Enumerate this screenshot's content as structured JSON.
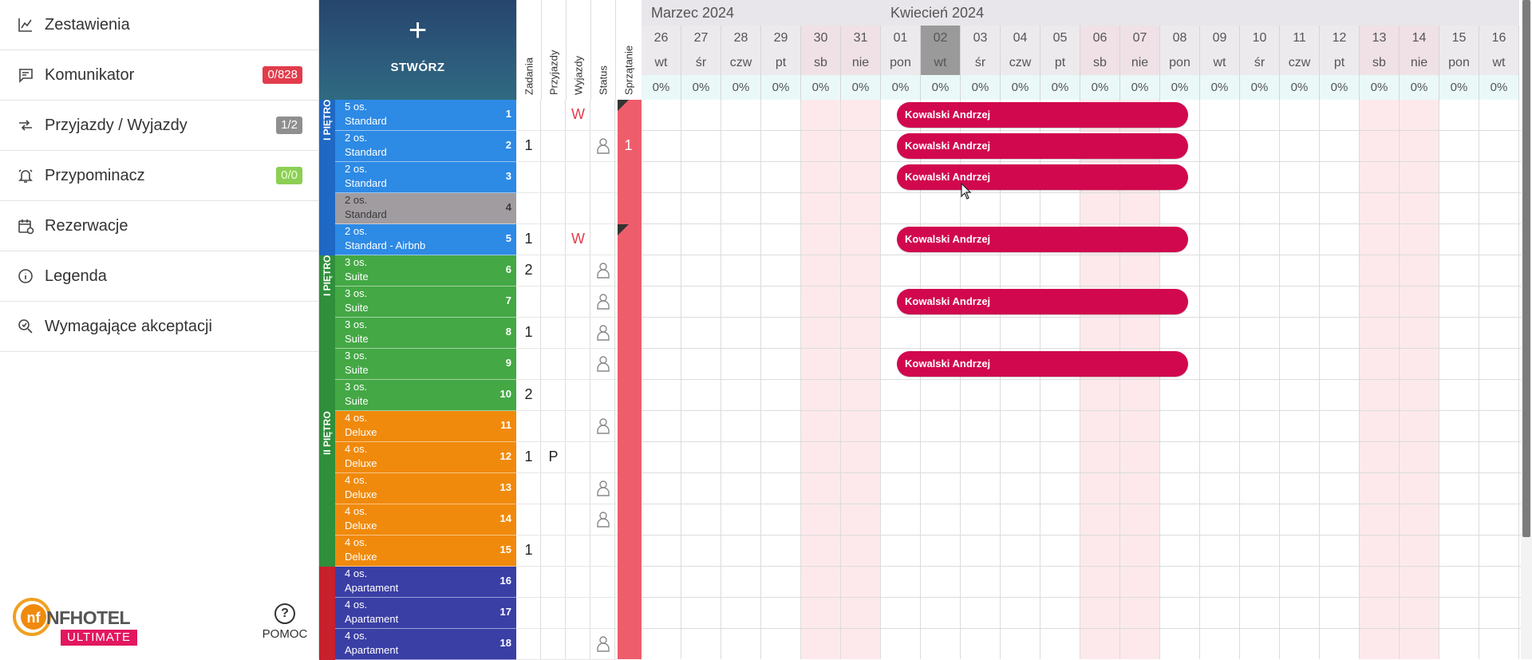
{
  "sidebar": {
    "items": [
      {
        "label": "Zestawienia",
        "icon": "chart-icon"
      },
      {
        "label": "Komunikator",
        "icon": "chat-icon",
        "badge": "0/828",
        "badge_color": "#e23c4b"
      },
      {
        "label": "Przyjazdy / Wyjazdy",
        "icon": "arrows-icon",
        "badge": "1/2",
        "badge_color": "#8f8f8f"
      },
      {
        "label": "Przypominacz",
        "icon": "bell-icon",
        "badge": "0/0",
        "badge_color": "#8dcf54"
      },
      {
        "label": "Rezerwacje",
        "icon": "calendar-icon"
      },
      {
        "label": "Legenda",
        "icon": "info-icon"
      },
      {
        "label": "Wymagające akceptacji",
        "icon": "search-icon"
      }
    ],
    "logo_text": "NFHOTEL",
    "logo_sub": "ULTIMATE",
    "logo_mark": "nf",
    "help_label": "POMOC",
    "help_icon": "?"
  },
  "create": {
    "plus": "+",
    "label": "STWÓRZ"
  },
  "column_headers": [
    "Zadania",
    "Przyjazdy",
    "Wyjazdy",
    "Status",
    "Sprzątanie"
  ],
  "floors": [
    {
      "label": "I PIĘTRO",
      "color": "#1f68c3"
    },
    {
      "label": "I PIĘTRO",
      "color": "#2f8f3a"
    },
    {
      "label": "II PIĘTRO",
      "color": "#2f8f3a"
    },
    {
      "label": "",
      "color": "#c8202d"
    }
  ],
  "rooms": [
    {
      "cap": "5 os.",
      "type": "Standard",
      "num": "1",
      "color": "#2d8ae5",
      "zadania": "",
      "przyjazdy": "",
      "wyjazdy": "W",
      "status": "",
      "sprzatanie": ""
    },
    {
      "cap": "2 os.",
      "type": "Standard",
      "num": "2",
      "color": "#2d8ae5",
      "zadania": "1",
      "przyjazdy": "",
      "wyjazdy": "",
      "status": "person",
      "sprzatanie": "1"
    },
    {
      "cap": "2 os.",
      "type": "Standard",
      "num": "3",
      "color": "#2d8ae5",
      "zadania": "",
      "przyjazdy": "",
      "wyjazdy": "",
      "status": "",
      "sprzatanie": ""
    },
    {
      "cap": "2 os.",
      "type": "Standard",
      "num": "4",
      "color": "#a09ca0",
      "zadania": "",
      "przyjazdy": "",
      "wyjazdy": "",
      "status": "",
      "sprzatanie": ""
    },
    {
      "cap": "2 os.",
      "type": "Standard - Airbnb",
      "num": "5",
      "color": "#2d8ae5",
      "zadania": "1",
      "przyjazdy": "",
      "wyjazdy": "W",
      "status": "",
      "sprzatanie": ""
    },
    {
      "cap": "3 os.",
      "type": "Suite",
      "num": "6",
      "color": "#44a845",
      "zadania": "2",
      "przyjazdy": "",
      "wyjazdy": "",
      "status": "person",
      "sprzatanie": ""
    },
    {
      "cap": "3 os.",
      "type": "Suite",
      "num": "7",
      "color": "#44a845",
      "zadania": "",
      "przyjazdy": "",
      "wyjazdy": "",
      "status": "person",
      "sprzatanie": ""
    },
    {
      "cap": "3 os.",
      "type": "Suite",
      "num": "8",
      "color": "#44a845",
      "zadania": "1",
      "przyjazdy": "",
      "wyjazdy": "",
      "status": "person",
      "sprzatanie": ""
    },
    {
      "cap": "3 os.",
      "type": "Suite",
      "num": "9",
      "color": "#44a845",
      "zadania": "",
      "przyjazdy": "",
      "wyjazdy": "",
      "status": "person",
      "sprzatanie": ""
    },
    {
      "cap": "3 os.",
      "type": "Suite",
      "num": "10",
      "color": "#44a845",
      "zadania": "2",
      "przyjazdy": "",
      "wyjazdy": "",
      "status": "",
      "sprzatanie": ""
    },
    {
      "cap": "4 os.",
      "type": "Deluxe",
      "num": "11",
      "color": "#f08a0c",
      "zadania": "",
      "przyjazdy": "",
      "wyjazdy": "",
      "status": "person",
      "sprzatanie": ""
    },
    {
      "cap": "4 os.",
      "type": "Deluxe",
      "num": "12",
      "color": "#f08a0c",
      "zadania": "1",
      "przyjazdy": "P",
      "wyjazdy": "",
      "status": "",
      "sprzatanie": ""
    },
    {
      "cap": "4 os.",
      "type": "Deluxe",
      "num": "13",
      "color": "#f08a0c",
      "zadania": "",
      "przyjazdy": "",
      "wyjazdy": "",
      "status": "person",
      "sprzatanie": ""
    },
    {
      "cap": "4 os.",
      "type": "Deluxe",
      "num": "14",
      "color": "#f08a0c",
      "zadania": "",
      "przyjazdy": "",
      "wyjazdy": "",
      "status": "person",
      "sprzatanie": ""
    },
    {
      "cap": "4 os.",
      "type": "Deluxe",
      "num": "15",
      "color": "#f08a0c",
      "zadania": "1",
      "przyjazdy": "",
      "wyjazdy": "",
      "status": "",
      "sprzatanie": ""
    },
    {
      "cap": "4 os.",
      "type": "Apartament",
      "num": "16",
      "color": "#3a3fa6",
      "zadania": "",
      "przyjazdy": "",
      "wyjazdy": "",
      "status": "",
      "sprzatanie": ""
    },
    {
      "cap": "4 os.",
      "type": "Apartament",
      "num": "17",
      "color": "#3a3fa6",
      "zadania": "",
      "przyjazdy": "",
      "wyjazdy": "",
      "status": "",
      "sprzatanie": ""
    },
    {
      "cap": "4 os.",
      "type": "Apartament",
      "num": "18",
      "color": "#3a3fa6",
      "zadania": "",
      "przyjazdy": "",
      "wyjazdy": "",
      "status": "person",
      "sprzatanie": ""
    }
  ],
  "calendar": {
    "months": [
      {
        "label": "Marzec 2024",
        "start_day": 0,
        "days": 6
      },
      {
        "label": "Kwiecień 2024",
        "start_day": 6,
        "days": 16
      }
    ],
    "days": [
      {
        "num": "26",
        "name": "wt",
        "pct": "0%",
        "weekend": false,
        "today": false
      },
      {
        "num": "27",
        "name": "śr",
        "pct": "0%",
        "weekend": false,
        "today": false
      },
      {
        "num": "28",
        "name": "czw",
        "pct": "0%",
        "weekend": false,
        "today": false
      },
      {
        "num": "29",
        "name": "pt",
        "pct": "0%",
        "weekend": false,
        "today": false
      },
      {
        "num": "30",
        "name": "sb",
        "pct": "0%",
        "weekend": true,
        "today": false
      },
      {
        "num": "31",
        "name": "nie",
        "pct": "0%",
        "weekend": true,
        "today": false
      },
      {
        "num": "01",
        "name": "pon",
        "pct": "0%",
        "weekend": false,
        "today": false
      },
      {
        "num": "02",
        "name": "wt",
        "pct": "0%",
        "weekend": false,
        "today": true
      },
      {
        "num": "03",
        "name": "śr",
        "pct": "0%",
        "weekend": false,
        "today": false
      },
      {
        "num": "04",
        "name": "czw",
        "pct": "0%",
        "weekend": false,
        "today": false
      },
      {
        "num": "05",
        "name": "pt",
        "pct": "0%",
        "weekend": false,
        "today": false
      },
      {
        "num": "06",
        "name": "sb",
        "pct": "0%",
        "weekend": true,
        "today": false
      },
      {
        "num": "07",
        "name": "nie",
        "pct": "0%",
        "weekend": true,
        "today": false
      },
      {
        "num": "08",
        "name": "pon",
        "pct": "0%",
        "weekend": false,
        "today": false
      },
      {
        "num": "09",
        "name": "wt",
        "pct": "0%",
        "weekend": false,
        "today": false
      },
      {
        "num": "10",
        "name": "śr",
        "pct": "0%",
        "weekend": false,
        "today": false
      },
      {
        "num": "11",
        "name": "czw",
        "pct": "0%",
        "weekend": false,
        "today": false
      },
      {
        "num": "12",
        "name": "pt",
        "pct": "0%",
        "weekend": false,
        "today": false
      },
      {
        "num": "13",
        "name": "sb",
        "pct": "0%",
        "weekend": true,
        "today": false
      },
      {
        "num": "14",
        "name": "nie",
        "pct": "0%",
        "weekend": true,
        "today": false
      },
      {
        "num": "15",
        "name": "pon",
        "pct": "0%",
        "weekend": false,
        "today": false
      },
      {
        "num": "16",
        "name": "wt",
        "pct": "0%",
        "weekend": false,
        "today": false
      }
    ],
    "bookings": [
      {
        "room": "1",
        "guest": "Kowalski Andrzej",
        "from": "01",
        "to": "08"
      },
      {
        "room": "2",
        "guest": "Kowalski Andrzej",
        "from": "01",
        "to": "08"
      },
      {
        "room": "3",
        "guest": "Kowalski Andrzej",
        "from": "01",
        "to": "08"
      },
      {
        "room": "5",
        "guest": "Kowalski Andrzej",
        "from": "01",
        "to": "08"
      },
      {
        "room": "7",
        "guest": "Kowalski Andrzej",
        "from": "01",
        "to": "08"
      },
      {
        "room": "9",
        "guest": "Kowalski Andrzej",
        "from": "01",
        "to": "08"
      }
    ]
  },
  "colors": {
    "booking": "#d1084e",
    "weekend": "#fde9ec",
    "cleaning": "#ee5d6b",
    "departure": "#e23c4b"
  }
}
